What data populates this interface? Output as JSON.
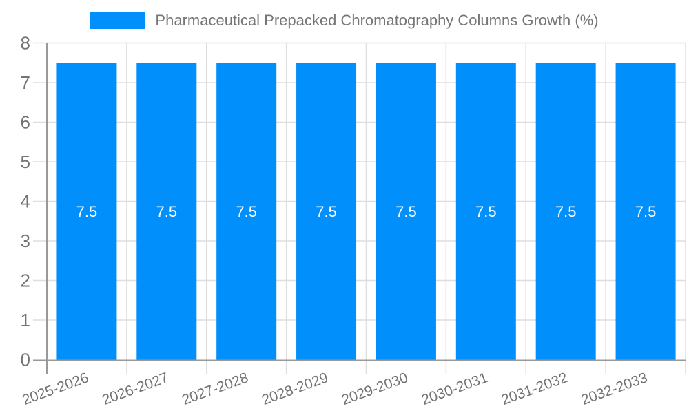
{
  "chart_data": {
    "type": "bar",
    "title": "Pharmaceutical Prepacked Chromatography Columns Growth (%)",
    "categories": [
      "2025-2026",
      "2026-2027",
      "2027-2028",
      "2028-2029",
      "2029-2030",
      "2030-2031",
      "2031-2032",
      "2032-2033"
    ],
    "series": [
      {
        "name": "Pharmaceutical Prepacked Chromatography Columns Growth (%)",
        "values": [
          7.5,
          7.5,
          7.5,
          7.5,
          7.5,
          7.5,
          7.5,
          7.5
        ]
      }
    ],
    "bar_value_labels": [
      "7.5",
      "7.5",
      "7.5",
      "7.5",
      "7.5",
      "7.5",
      "7.5",
      "7.5"
    ],
    "ylim": [
      0,
      8
    ],
    "yticks": [
      0,
      1,
      2,
      3,
      4,
      5,
      6,
      7,
      8
    ],
    "xlabel": "",
    "ylabel": "",
    "grid": true,
    "legend_position": "top",
    "x_label_rotation": -20,
    "colors": {
      "bar": "#008FFB",
      "axis_line": "#999999",
      "grid_line": "#DEDEDE",
      "tick_label": "#737373",
      "legend_text": "#757575",
      "bar_label": "#FFFFFF",
      "background": "#FFFFFF"
    }
  }
}
